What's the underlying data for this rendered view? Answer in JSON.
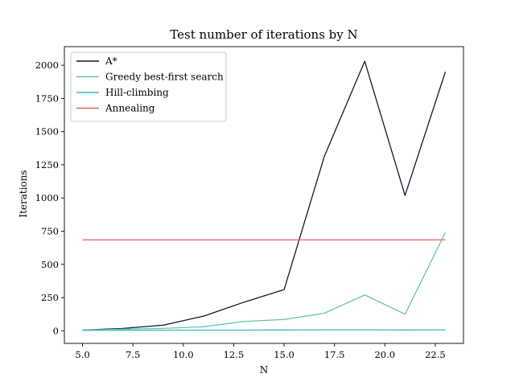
{
  "chart_data": {
    "type": "line",
    "title": "Test number of iterations by N",
    "xlabel": "N",
    "ylabel": "Iterations",
    "xlim": [
      4.1,
      23.9
    ],
    "ylim": [
      -95,
      2140
    ],
    "x_ticks": [
      5.0,
      7.5,
      10.0,
      12.5,
      15.0,
      17.5,
      20.0,
      22.5
    ],
    "x_tick_labels": [
      "5.0",
      "7.5",
      "10.0",
      "12.5",
      "15.0",
      "17.5",
      "20.0",
      "22.5"
    ],
    "y_ticks": [
      0,
      250,
      500,
      750,
      1000,
      1250,
      1500,
      1750,
      2000
    ],
    "y_tick_labels": [
      "0",
      "250",
      "500",
      "750",
      "1000",
      "1250",
      "1500",
      "1750",
      "2000"
    ],
    "grid": false,
    "legend": "top-left",
    "series": [
      {
        "name": "A*",
        "color": "#0d1b2a",
        "x": [
          5,
          7,
          9,
          11,
          13,
          15,
          17,
          19,
          21,
          23
        ],
        "y": [
          5,
          18,
          42,
          110,
          215,
          310,
          1315,
          2030,
          1020,
          1950
        ]
      },
      {
        "name": "Greedy best-first search",
        "color": "#66c7a0",
        "x": [
          5,
          7,
          9,
          11,
          13,
          15,
          17,
          19,
          21,
          23
        ],
        "y": [
          5,
          12,
          18,
          30,
          70,
          85,
          132,
          270,
          125,
          740
        ]
      },
      {
        "name": "Hill-climbing",
        "color": "#3ab9c9",
        "x": [
          5,
          7,
          9,
          11,
          13,
          15,
          17,
          19,
          21,
          23
        ],
        "y": [
          3,
          4,
          4,
          5,
          5,
          6,
          7,
          7,
          6,
          7
        ]
      },
      {
        "name": "Annealing",
        "color": "#f25a5a",
        "x": [
          5,
          7,
          9,
          11,
          13,
          15,
          17,
          19,
          21,
          23
        ],
        "y": [
          685,
          685,
          685,
          685,
          685,
          685,
          685,
          685,
          685,
          685
        ]
      }
    ]
  }
}
